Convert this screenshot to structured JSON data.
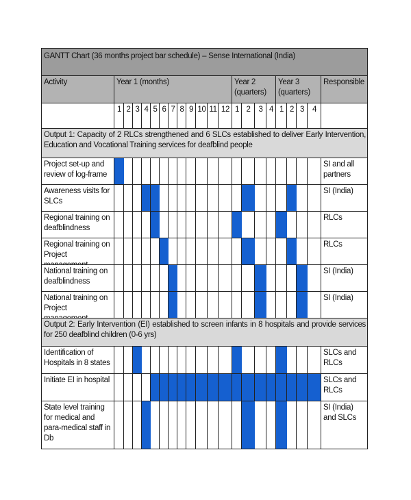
{
  "title": "GANTT Chart (36 months project bar schedule) – Sense International (India)",
  "headers": {
    "activity": "Activity",
    "year1": "Year 1 (months)",
    "year2": "Year 2 (quarters)",
    "year3": "Year 3 (quarters)",
    "responsible": "Responsible"
  },
  "columns": [
    1,
    2,
    3,
    4,
    5,
    6,
    7,
    8,
    9,
    10,
    11,
    12,
    1,
    2,
    3,
    4,
    1,
    2,
    3,
    4
  ],
  "sections": [
    {
      "output": "Output 1: Capacity of 2 RLCs strengthened and 6 SLCs established to deliver Early Intervention, Education and Vocational Training services for deafblind people",
      "activities": [
        {
          "activity": "Project set-up and review of log-frame",
          "schedule": [
            0
          ],
          "responsible": "SI and all partners"
        },
        {
          "activity": "Awareness visits for SLCs",
          "schedule": [
            3,
            4,
            13,
            17
          ],
          "responsible": "SI (India)"
        },
        {
          "activity": "Regional training on deafblindness",
          "schedule": [
            4,
            12,
            16
          ],
          "responsible": "RLCs"
        },
        {
          "activity": "Regional training on Project management",
          "schedule": [
            5,
            13,
            17
          ],
          "responsible": "RLCs"
        },
        {
          "activity": "National training on deafblindness",
          "schedule": [
            6,
            14,
            18
          ],
          "responsible": "SI (India)"
        },
        {
          "activity": "National training on Project management",
          "schedule": [
            6,
            14,
            18
          ],
          "responsible": "SI (India)"
        }
      ]
    },
    {
      "output": "Output 2: Early Intervention (EI) established to screen infants in 8 hospitals and provide services for 250 deafblind children (0-6 yrs)",
      "activities": [
        {
          "activity": "Identification of Hospitals in 8 states",
          "schedule": [
            2,
            12,
            16
          ],
          "responsible": "SLCs and RLCs"
        },
        {
          "activity": "Initiate EI in hospital",
          "schedule": [
            4,
            5,
            6,
            7,
            8,
            9,
            10,
            11,
            12,
            13,
            14,
            15,
            16,
            17,
            18,
            19
          ],
          "responsible": "SLCs and RLCs"
        },
        {
          "activity": "State level training for medical and para-medical staff in Db",
          "schedule": [
            3,
            13,
            16
          ],
          "responsible": "SI (India) and SLCs"
        }
      ]
    }
  ]
}
